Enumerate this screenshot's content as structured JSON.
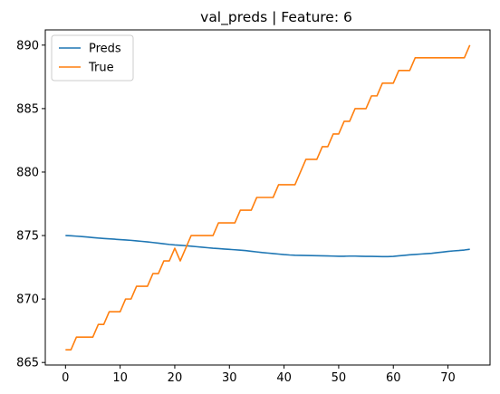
{
  "chart_data": {
    "type": "line",
    "title": "val_preds | Feature: 6",
    "xlabel": "",
    "ylabel": "",
    "xlim": [
      -3.7,
      77.7
    ],
    "ylim": [
      864.8,
      891.2
    ],
    "xticks": [
      0,
      10,
      20,
      30,
      40,
      50,
      60,
      70
    ],
    "yticks": [
      865,
      870,
      875,
      880,
      885,
      890
    ],
    "grid": false,
    "legend_position": "top-left",
    "series": [
      {
        "name": "Preds",
        "color": "#1f77b4",
        "x": [
          0,
          1,
          2,
          3,
          4,
          5,
          6,
          7,
          8,
          9,
          10,
          11,
          12,
          13,
          14,
          15,
          16,
          17,
          18,
          19,
          20,
          21,
          22,
          23,
          24,
          25,
          26,
          27,
          28,
          29,
          30,
          31,
          32,
          33,
          34,
          35,
          36,
          37,
          38,
          39,
          40,
          41,
          42,
          43,
          44,
          45,
          46,
          47,
          48,
          49,
          50,
          51,
          52,
          53,
          54,
          55,
          56,
          57,
          58,
          59,
          60,
          61,
          62,
          63,
          64,
          65,
          66,
          67,
          68,
          69,
          70,
          71,
          72,
          73,
          74
        ],
        "y": [
          875.0,
          874.98,
          874.95,
          874.92,
          874.88,
          874.84,
          874.8,
          874.77,
          874.74,
          874.71,
          874.68,
          874.65,
          874.62,
          874.58,
          874.54,
          874.5,
          874.45,
          874.4,
          874.35,
          874.3,
          874.26,
          874.23,
          874.2,
          874.16,
          874.12,
          874.08,
          874.04,
          874.0,
          873.97,
          873.94,
          873.91,
          873.88,
          873.85,
          873.81,
          873.76,
          873.71,
          873.66,
          873.62,
          873.58,
          873.54,
          873.5,
          873.47,
          873.45,
          873.44,
          873.43,
          873.42,
          873.41,
          873.4,
          873.39,
          873.38,
          873.37,
          873.37,
          873.38,
          873.38,
          873.37,
          873.36,
          873.36,
          873.35,
          873.34,
          873.34,
          873.36,
          873.4,
          873.44,
          873.48,
          873.51,
          873.54,
          873.57,
          873.6,
          873.65,
          873.7,
          873.75,
          873.79,
          873.82,
          873.86,
          873.92
        ]
      },
      {
        "name": "True",
        "color": "#ff7f0e",
        "x": [
          0,
          1,
          2,
          3,
          4,
          5,
          6,
          7,
          8,
          9,
          10,
          11,
          12,
          13,
          14,
          15,
          16,
          17,
          18,
          19,
          20,
          21,
          22,
          23,
          24,
          25,
          26,
          27,
          28,
          29,
          30,
          31,
          32,
          33,
          34,
          35,
          36,
          37,
          38,
          39,
          40,
          41,
          42,
          43,
          44,
          45,
          46,
          47,
          48,
          49,
          50,
          51,
          52,
          53,
          54,
          55,
          56,
          57,
          58,
          59,
          60,
          61,
          62,
          63,
          64,
          65,
          66,
          67,
          68,
          69,
          70,
          71,
          72,
          73,
          74
        ],
        "y": [
          866,
          866,
          867,
          867,
          867,
          867,
          868,
          868,
          869,
          869,
          869,
          870,
          870,
          871,
          871,
          871,
          872,
          872,
          873,
          873,
          874,
          873,
          874,
          875,
          875,
          875,
          875,
          875,
          876,
          876,
          876,
          876,
          877,
          877,
          877,
          878,
          878,
          878,
          878,
          879,
          879,
          879,
          879,
          880,
          881,
          881,
          881,
          882,
          882,
          883,
          883,
          884,
          884,
          885,
          885,
          885,
          886,
          886,
          887,
          887,
          887,
          888,
          888,
          888,
          889,
          889,
          889,
          889,
          889,
          889,
          889,
          889,
          889,
          889,
          890
        ]
      }
    ]
  }
}
